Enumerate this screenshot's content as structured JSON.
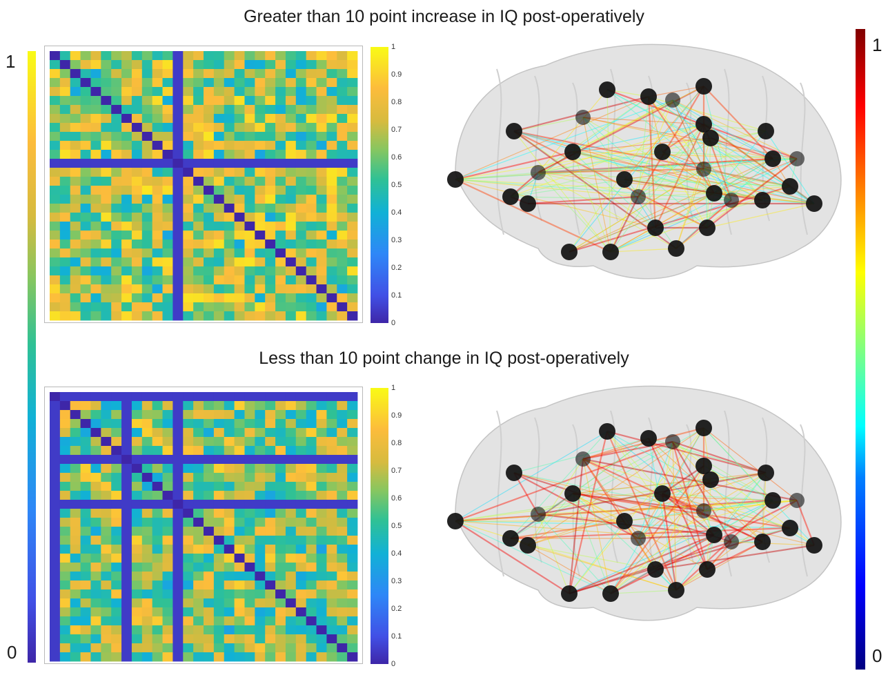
{
  "title_top": "Greater than 10 point increase in IQ post-operatively",
  "title_bottom": "Less than 10 point change in IQ post-operatively",
  "left_colorbar": {
    "max_label": "1",
    "min_label": "0"
  },
  "right_colorbar": {
    "max_label": "1",
    "min_label": "0"
  },
  "chart_data": [
    {
      "type": "heatmap",
      "title": "Greater than 10 point increase in IQ post-operatively",
      "rows": 30,
      "cols": 30,
      "value_range": [
        0,
        1
      ],
      "colormap": "parula",
      "colorbar_ticks": [
        "1",
        "0.9",
        "0.8",
        "0.7",
        "0.6",
        "0.5",
        "0.4",
        "0.3",
        "0.2",
        "0.1",
        "0"
      ],
      "diagonal_value": 0,
      "low_rows_cols": [
        12
      ],
      "low_value": 0.05,
      "typical_value_range": [
        0.45,
        0.95
      ]
    },
    {
      "type": "heatmap",
      "title": "Less than 10 point change in IQ post-operatively",
      "rows": 30,
      "cols": 30,
      "value_range": [
        0,
        1
      ],
      "colormap": "parula",
      "colorbar_ticks": [
        "1",
        "0.9",
        "0.8",
        "0.7",
        "0.6",
        "0.5",
        "0.4",
        "0.3",
        "0.2",
        "0.1",
        "0"
      ],
      "diagonal_value": 0,
      "low_rows_cols": [
        0,
        7,
        12
      ],
      "low_value": 0.05,
      "typical_value_range": [
        0.4,
        0.9
      ]
    },
    {
      "type": "network",
      "title": "Greater than 10 point increase in IQ post-operatively",
      "edge_colormap": "jet",
      "value_range": [
        0,
        1
      ],
      "node_color": "#111111",
      "node_count": 30
    },
    {
      "type": "network",
      "title": "Less than 10 point change in IQ post-operatively",
      "edge_colormap": "jet",
      "value_range": [
        0,
        1
      ],
      "node_color": "#111111",
      "node_count": 30
    }
  ]
}
